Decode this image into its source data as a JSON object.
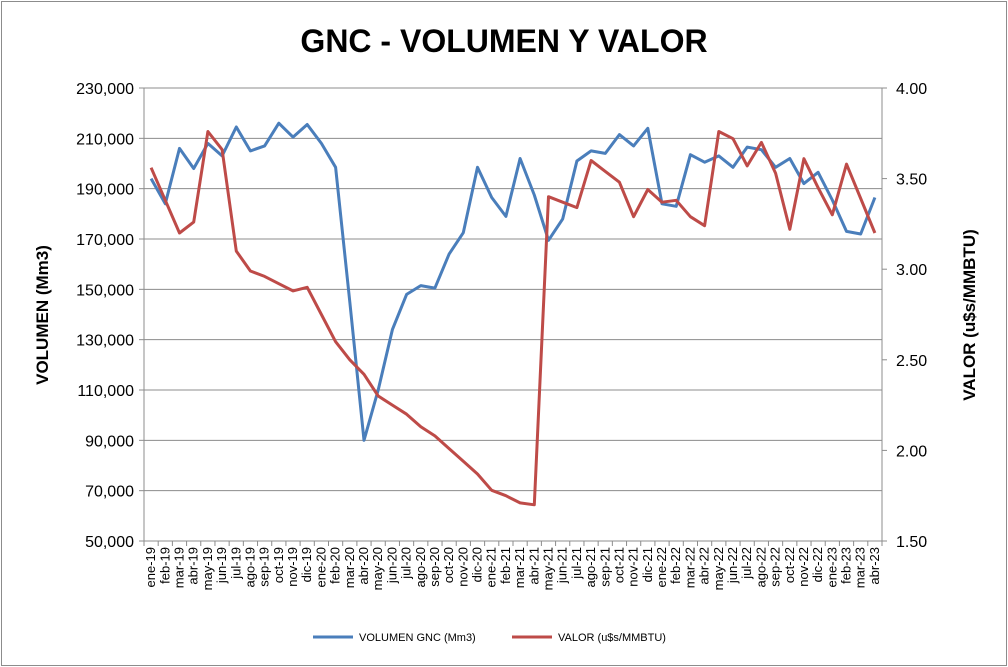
{
  "chart_data": {
    "type": "line",
    "title": "GNC - VOLUMEN Y VALOR",
    "ylabel": "VOLUMEN (Mm3)",
    "y2label": "VALOR (u$s/MMBTU)",
    "xlabel": "",
    "ylim": [
      50000,
      230000
    ],
    "y2lim": [
      1.5,
      4.0
    ],
    "y_ticks": [
      "230,000",
      "210,000",
      "190,000",
      "170,000",
      "150,000",
      "130,000",
      "110,000",
      "90,000",
      "70,000",
      "50,000"
    ],
    "y2_ticks": [
      "4.00",
      "3.50",
      "3.00",
      "2.50",
      "2.00",
      "1.50"
    ],
    "grid": true,
    "legend_position": "bottom",
    "categories": [
      "ene-19",
      "feb-19",
      "mar-19",
      "abr-19",
      "may-19",
      "jun-19",
      "jul-19",
      "ago-19",
      "sep-19",
      "oct-19",
      "nov-19",
      "dic-19",
      "ene-20",
      "feb-20",
      "mar-20",
      "abr-20",
      "may-20",
      "jun-20",
      "jul-20",
      "ago-20",
      "sep-20",
      "oct-20",
      "nov-20",
      "dic-20",
      "ene-21",
      "feb-21",
      "mar-21",
      "abr-21",
      "may-21",
      "jun-21",
      "jul-21",
      "ago-21",
      "sep-21",
      "oct-21",
      "nov-21",
      "dic-21",
      "ene-22",
      "feb-22",
      "mar-22",
      "abr-22",
      "may-22",
      "jun-22",
      "jul-22",
      "ago-22",
      "sep-22",
      "oct-22",
      "nov-22",
      "dic-22",
      "ene-23",
      "feb-23",
      "mar-23",
      "abr-23"
    ],
    "series": [
      {
        "name": "VOLUMEN GNC (Mm3)",
        "axis": "left",
        "color": "#4a7ebb",
        "values": [
          194000,
          184000,
          206000,
          198000,
          208000,
          203000,
          214500,
          205000,
          207000,
          216000,
          210500,
          215500,
          208000,
          198500,
          145000,
          90000,
          110000,
          134000,
          148000,
          151500,
          150500,
          164000,
          172500,
          198500,
          186500,
          179000,
          202000,
          187500,
          169500,
          178000,
          201000,
          205000,
          204000,
          211500,
          207000,
          214000,
          184000,
          183000,
          203500,
          200500,
          203000,
          198500,
          206500,
          205500,
          198500,
          202000,
          192000,
          196500,
          185500,
          173000,
          172000,
          186500
        ]
      },
      {
        "name": "VALOR (u$s/MMBTU)",
        "axis": "right",
        "color": "#be4b48",
        "values": [
          3.56,
          3.38,
          3.2,
          3.26,
          3.76,
          3.66,
          3.1,
          2.99,
          2.96,
          2.92,
          2.88,
          2.9,
          2.75,
          2.6,
          2.5,
          2.42,
          2.3,
          2.25,
          2.2,
          2.13,
          2.08,
          2.01,
          1.94,
          1.87,
          1.78,
          1.75,
          1.71,
          1.7,
          3.4,
          3.37,
          3.34,
          3.6,
          3.54,
          3.48,
          3.29,
          3.44,
          3.37,
          3.38,
          3.29,
          3.24,
          3.76,
          3.72,
          3.57,
          3.7,
          3.53,
          3.22,
          3.61,
          3.45,
          3.3,
          3.58,
          3.39,
          3.2
        ]
      }
    ]
  }
}
